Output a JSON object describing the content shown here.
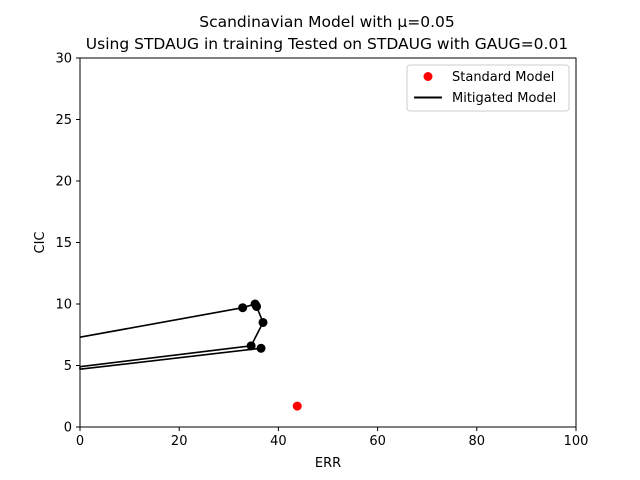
{
  "chart_data": {
    "type": "scatter",
    "title_line1": "Scandinavian Model with μ=0.05",
    "title_line2": "Using STDAUG in training Tested on STDAUG with GAUG=0.01",
    "xlabel": "ERR",
    "ylabel": "CIC",
    "xlim": [
      0,
      100
    ],
    "ylim": [
      0,
      30
    ],
    "xticks": [
      "0",
      "20",
      "40",
      "60",
      "80",
      "100"
    ],
    "yticks": [
      "0",
      "5",
      "10",
      "15",
      "20",
      "25",
      "30"
    ],
    "grid": false,
    "legend_position": "top-right",
    "series": [
      {
        "name": "Standard Model",
        "kind": "points",
        "color": "#ff0000",
        "points": [
          [
            43.8,
            1.7
          ]
        ]
      },
      {
        "name": "Mitigated Model",
        "kind": "line-with-markers",
        "color": "#000000",
        "points": [
          [
            0.0,
            7.3
          ],
          [
            32.8,
            9.7
          ],
          [
            35.3,
            10.0
          ],
          [
            35.6,
            9.8
          ],
          [
            36.9,
            8.5
          ],
          [
            34.5,
            6.6
          ],
          [
            0.0,
            4.9
          ],
          [
            0.0,
            4.7
          ],
          [
            36.5,
            6.4
          ]
        ]
      }
    ]
  }
}
